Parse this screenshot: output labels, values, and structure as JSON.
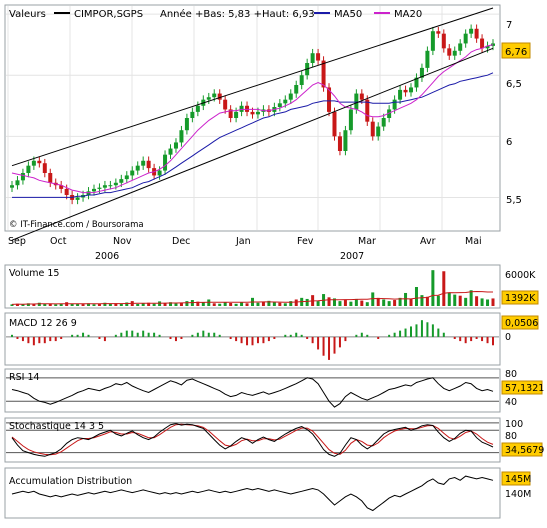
{
  "header": {
    "label": "Valeurs",
    "ticker": "CIMPOR,SGPS",
    "stats": "Année +Bas: 5,83 +Haut: 6,93",
    "ma50_label": "MA50",
    "ma20_label": "MA20"
  },
  "watermark": "© IT-Finance.com / Boursorama",
  "colors": {
    "background": "#ffffff",
    "border": "#9aa0a6",
    "grid": "#e4e4e4",
    "up": "#159a2a",
    "down": "#c81818",
    "ma50": "#1a1aa8",
    "ma20": "#cc22cc",
    "badge": "#ffcc00",
    "line": "#000000"
  },
  "chart_data": [
    {
      "type": "candlestick",
      "name": "price",
      "x_months": [
        "Sep",
        "Oct",
        "Nov",
        "Dec",
        "Jan",
        "Fev",
        "Mar",
        "Avr",
        "Mai"
      ],
      "x_years": [
        "2006",
        "2007"
      ],
      "y_ticks": [
        "7",
        "6,5",
        "6",
        "5,5"
      ],
      "ylim": [
        5.25,
        7.05
      ],
      "last_value": "6,76",
      "legend": [
        "CIMPOR,SGPS",
        "MA50",
        "MA20"
      ],
      "closes": [
        5.6,
        5.64,
        5.7,
        5.76,
        5.8,
        5.78,
        5.7,
        5.62,
        5.6,
        5.57,
        5.52,
        5.48,
        5.5,
        5.52,
        5.55,
        5.57,
        5.58,
        5.6,
        5.6,
        5.62,
        5.65,
        5.68,
        5.72,
        5.76,
        5.8,
        5.74,
        5.68,
        5.72,
        5.85,
        5.9,
        5.95,
        6.05,
        6.15,
        6.2,
        6.25,
        6.3,
        6.32,
        6.35,
        6.3,
        6.22,
        6.15,
        6.2,
        6.25,
        6.2,
        6.18,
        6.2,
        6.22,
        6.2,
        6.24,
        6.27,
        6.3,
        6.35,
        6.42,
        6.5,
        6.6,
        6.68,
        6.62,
        6.4,
        6.2,
        6.0,
        5.88,
        6.05,
        6.22,
        6.35,
        6.3,
        6.12,
        6.0,
        6.08,
        6.15,
        6.22,
        6.3,
        6.38,
        6.36,
        6.4,
        6.48,
        6.56,
        6.7,
        6.86,
        6.84,
        6.72,
        6.66,
        6.7,
        6.76,
        6.84,
        6.88,
        6.8,
        6.72,
        6.74,
        6.76
      ],
      "ma20": [
        5.7,
        5.69,
        5.68,
        5.67,
        5.66,
        5.64,
        5.63,
        5.62,
        5.61,
        5.6,
        5.58,
        5.56,
        5.55,
        5.54,
        5.54,
        5.54,
        5.55,
        5.56,
        5.57,
        5.58,
        5.6,
        5.62,
        5.64,
        5.66,
        5.68,
        5.7,
        5.71,
        5.73,
        5.76,
        5.8,
        5.85,
        5.9,
        5.95,
        6.0,
        6.05,
        6.09,
        6.13,
        6.16,
        6.19,
        6.2,
        6.21,
        6.21,
        6.22,
        6.22,
        6.22,
        6.22,
        6.21,
        6.21,
        6.22,
        6.23,
        6.25,
        6.27,
        6.3,
        6.34,
        6.38,
        6.42,
        6.44,
        6.42,
        6.38,
        6.33,
        6.27,
        6.24,
        6.23,
        6.22,
        6.2,
        6.17,
        6.16,
        6.16,
        6.17,
        6.19,
        6.21,
        6.23,
        6.25,
        6.27,
        6.3,
        6.34,
        6.39,
        6.44,
        6.49,
        6.53,
        6.56,
        6.59,
        6.62,
        6.65,
        6.69,
        6.71,
        6.72,
        6.74,
        6.75
      ],
      "ma50": [
        5.5,
        5.5,
        5.5,
        5.5,
        5.5,
        5.5,
        5.5,
        5.5,
        5.5,
        5.5,
        5.5,
        5.5,
        5.51,
        5.51,
        5.52,
        5.52,
        5.53,
        5.54,
        5.54,
        5.55,
        5.56,
        5.57,
        5.58,
        5.6,
        5.62,
        5.63,
        5.65,
        5.67,
        5.69,
        5.72,
        5.75,
        5.78,
        5.81,
        5.84,
        5.87,
        5.9,
        5.93,
        5.96,
        5.99,
        6.01,
        6.03,
        6.05,
        6.07,
        6.09,
        6.11,
        6.13,
        6.15,
        6.16,
        6.18,
        6.19,
        6.2,
        6.22,
        6.23,
        6.24,
        6.25,
        6.27,
        6.28,
        6.29,
        6.29,
        6.29,
        6.28,
        6.28,
        6.28,
        6.28,
        6.28,
        6.28,
        6.27,
        6.27,
        6.27,
        6.27,
        6.28,
        6.28,
        6.29,
        6.3,
        6.31,
        6.32,
        6.34,
        6.36,
        6.38,
        6.4,
        6.42,
        6.43,
        6.45,
        6.46,
        6.47,
        6.48,
        6.49,
        6.5,
        6.52
      ],
      "channel": [
        {
          "x": [
            0,
            88
          ],
          "y": [
            5.76,
            7.05
          ]
        },
        {
          "x": [
            0,
            88
          ],
          "y": [
            5.15,
            6.72
          ]
        }
      ]
    },
    {
      "type": "bar",
      "name": "Volume 15",
      "y_ticks": [
        "6000K"
      ],
      "ylim": [
        0,
        7000
      ],
      "last_value": "1392K",
      "values": [
        300,
        400,
        280,
        500,
        350,
        600,
        420,
        380,
        300,
        450,
        700,
        380,
        400,
        350,
        500,
        320,
        450,
        600,
        380,
        500,
        420,
        650,
        900,
        380,
        550,
        600,
        420,
        850,
        500,
        700,
        450,
        600,
        900,
        1100,
        800,
        650,
        1200,
        500,
        420,
        700,
        550,
        400,
        650,
        500,
        1500,
        600,
        800,
        950,
        700,
        600,
        500,
        900,
        1200,
        1500,
        1300,
        2000,
        900,
        2200,
        1600,
        1400,
        900,
        1100,
        800,
        1300,
        1000,
        700,
        2500,
        1500,
        1200,
        900,
        1100,
        1500,
        2400,
        1300,
        3500,
        2000,
        1700,
        6600,
        1900,
        6400,
        2500,
        2100,
        1900,
        1500,
        2900,
        1800,
        1400,
        1200,
        1392
      ]
    },
    {
      "type": "histogram",
      "name": "MACD 12 26 9",
      "y_ticks": [
        "0"
      ],
      "ylim": [
        -0.12,
        0.1
      ],
      "last_value": "0,0506",
      "values": [
        0.01,
        -0.01,
        -0.02,
        -0.03,
        -0.04,
        -0.03,
        -0.03,
        -0.02,
        -0.02,
        -0.01,
        0.0,
        0.01,
        0.01,
        0.02,
        0.01,
        0.0,
        -0.01,
        -0.02,
        0.0,
        0.01,
        0.02,
        0.03,
        0.03,
        0.02,
        0.03,
        0.02,
        0.02,
        0.01,
        0.0,
        -0.01,
        -0.02,
        -0.01,
        0.0,
        0.01,
        0.02,
        0.03,
        0.02,
        0.02,
        0.01,
        0.0,
        -0.01,
        -0.02,
        -0.03,
        -0.04,
        -0.04,
        -0.03,
        -0.03,
        -0.02,
        -0.01,
        0.0,
        0.01,
        0.01,
        0.02,
        0.01,
        -0.01,
        -0.03,
        -0.06,
        -0.09,
        -0.11,
        -0.08,
        -0.05,
        -0.02,
        0.0,
        0.01,
        0.02,
        0.01,
        0.0,
        -0.01,
        0.0,
        0.01,
        0.02,
        0.03,
        0.04,
        0.05,
        0.06,
        0.08,
        0.07,
        0.06,
        0.04,
        0.02,
        0.0,
        -0.01,
        -0.02,
        -0.03,
        -0.02,
        -0.01,
        -0.02,
        -0.03,
        -0.04
      ]
    },
    {
      "type": "line",
      "name": "RSI 14",
      "y_ticks": [
        "80",
        "60",
        "40"
      ],
      "ylim": [
        25,
        90
      ],
      "last_value": "57,1321",
      "values": [
        60,
        58,
        55,
        52,
        45,
        40,
        38,
        35,
        38,
        42,
        46,
        50,
        55,
        58,
        62,
        60,
        58,
        62,
        65,
        70,
        68,
        72,
        66,
        62,
        58,
        55,
        60,
        65,
        70,
        75,
        72,
        68,
        76,
        78,
        74,
        70,
        66,
        62,
        58,
        52,
        48,
        50,
        55,
        52,
        50,
        53,
        56,
        52,
        55,
        58,
        62,
        66,
        70,
        75,
        80,
        78,
        70,
        55,
        40,
        30,
        36,
        48,
        55,
        50,
        45,
        42,
        46,
        50,
        55,
        60,
        62,
        65,
        68,
        66,
        72,
        75,
        78,
        80,
        70,
        62,
        58,
        62,
        66,
        72,
        70,
        62,
        58,
        60,
        57
      ]
    },
    {
      "type": "line",
      "name": "Stochastique 14 3 5",
      "y_ticks": [
        "100",
        "80"
      ],
      "ylim": [
        0,
        105
      ],
      "last_value": "34,5679",
      "k": [
        60,
        40,
        25,
        20,
        15,
        12,
        10,
        15,
        20,
        30,
        45,
        55,
        60,
        58,
        55,
        62,
        70,
        75,
        80,
        70,
        65,
        72,
        78,
        68,
        60,
        55,
        62,
        75,
        85,
        95,
        98,
        94,
        96,
        95,
        90,
        85,
        70,
        55,
        40,
        30,
        38,
        50,
        60,
        55,
        45,
        55,
        62,
        55,
        50,
        60,
        70,
        78,
        85,
        90,
        82,
        70,
        50,
        28,
        15,
        10,
        18,
        40,
        60,
        55,
        40,
        30,
        40,
        55,
        70,
        78,
        82,
        85,
        88,
        80,
        85,
        92,
        95,
        93,
        75,
        60,
        50,
        58,
        72,
        80,
        78,
        60,
        48,
        42,
        35
      ],
      "d": [
        62,
        50,
        38,
        28,
        22,
        18,
        15,
        14,
        16,
        22,
        32,
        42,
        52,
        58,
        58,
        60,
        65,
        70,
        76,
        74,
        70,
        70,
        74,
        72,
        66,
        60,
        60,
        68,
        78,
        88,
        95,
        96,
        95,
        94,
        92,
        88,
        78,
        65,
        52,
        40,
        37,
        42,
        52,
        56,
        52,
        52,
        57,
        57,
        54,
        56,
        64,
        72,
        80,
        86,
        86,
        78,
        62,
        45,
        28,
        18,
        15,
        26,
        45,
        55,
        50,
        40,
        38,
        46,
        60,
        70,
        78,
        82,
        85,
        84,
        84,
        88,
        92,
        93,
        85,
        72,
        60,
        56,
        64,
        74,
        78,
        70,
        58,
        48,
        42
      ]
    },
    {
      "type": "line",
      "name": "Accumulation Distribution",
      "y_ticks": [
        "140M"
      ],
      "ylim": [
        132,
        148
      ],
      "last_value": "145M",
      "values": [
        140,
        140.5,
        141,
        140.5,
        141,
        140,
        139.5,
        139,
        139.5,
        139,
        139.5,
        140,
        139.5,
        140,
        140.5,
        140,
        140.5,
        141,
        140.5,
        141,
        141.5,
        141,
        140.5,
        141,
        141.5,
        141,
        140.5,
        140,
        140.5,
        140,
        140.5,
        140,
        140.5,
        141,
        140.5,
        141,
        141.5,
        141,
        140.5,
        141,
        140.5,
        141,
        141.5,
        142,
        141.5,
        142,
        141.5,
        141,
        141.5,
        141,
        140.5,
        140,
        140.5,
        141,
        141.5,
        142,
        141.5,
        140,
        138,
        136,
        137.5,
        139,
        140,
        139,
        137.5,
        135,
        134,
        135.5,
        137,
        138.5,
        139.5,
        139,
        140,
        141,
        142,
        143,
        144.5,
        145.5,
        144,
        143.5,
        145.5,
        146,
        145,
        146.5,
        146,
        145.5,
        146,
        145.5,
        145
      ]
    }
  ]
}
